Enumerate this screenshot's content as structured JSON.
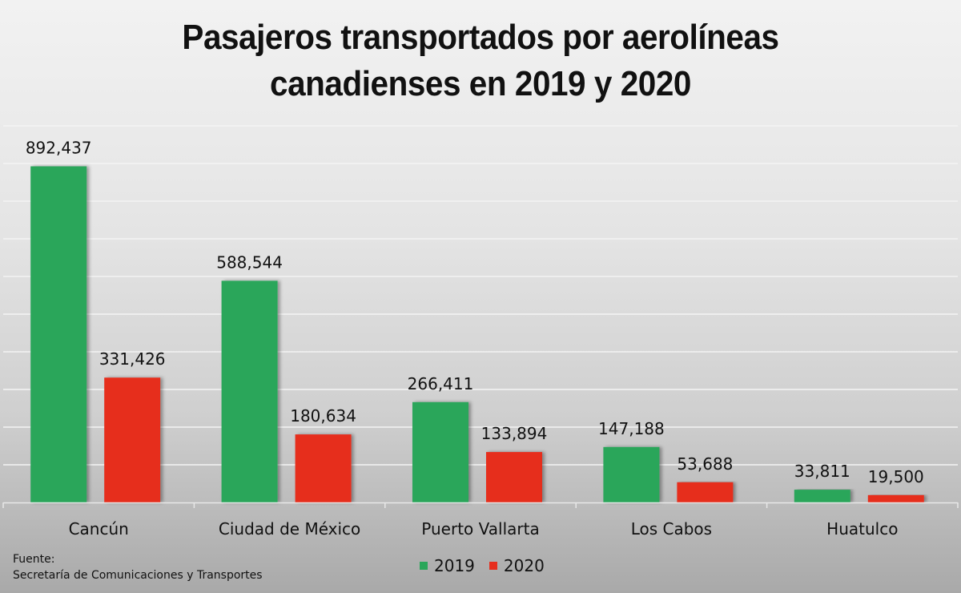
{
  "chart_data": {
    "type": "bar",
    "title": "Pasajeros transportados por aerolíneas canadienses en 2019 y 2020",
    "title_lines": [
      "Pasajeros transportados por aerolíneas",
      "canadienses en 2019 y 2020"
    ],
    "categories": [
      "Cancún",
      "Ciudad de México",
      "Puerto Vallarta",
      "Los Cabos",
      "Huatulco"
    ],
    "series": [
      {
        "name": "2019",
        "color": "#2aa65a",
        "values": [
          892437,
          588544,
          266411,
          147188,
          33811
        ],
        "labels": [
          "892,437",
          "588,544",
          "266,411",
          "147,188",
          "33,811"
        ]
      },
      {
        "name": "2020",
        "color": "#e62e1e",
        "values": [
          331426,
          180634,
          133894,
          53688,
          19500
        ],
        "labels": [
          "331,426",
          "180,634",
          "133,894",
          "53,688",
          "19,500"
        ]
      }
    ],
    "xlabel": "",
    "ylabel": "",
    "ylim": [
      0,
      1000000
    ],
    "grid": true,
    "legend": "bottom-center"
  },
  "source": {
    "label": "Fuente:",
    "text": "Secretaría de Comunicaciones y Transportes"
  }
}
